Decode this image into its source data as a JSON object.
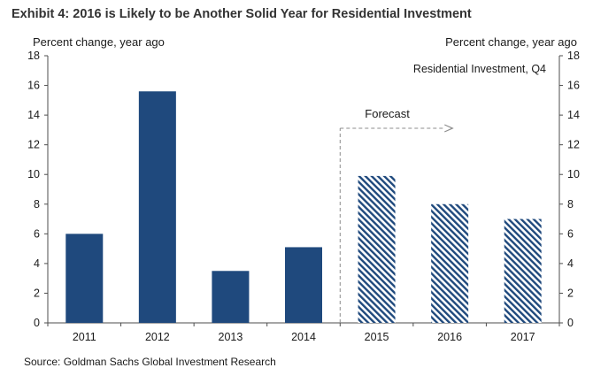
{
  "title": "Exhibit 4: 2016 is Likely to be Another Solid Year for Residential Investment",
  "source": "Source: Goldman Sachs Global Investment Research",
  "colors": {
    "actual": "#1f497d",
    "forecast": "#1f497d",
    "axis": "#4d4d4d",
    "arrow": "#8c8c8c"
  },
  "chart_data": {
    "type": "bar",
    "title": "Exhibit 4: 2016 is Likely to be Another Solid Year for Residential Investment",
    "series_label": "Residential Investment, Q4",
    "ylabel_left": "Percent change, year ago",
    "ylabel_right": "Percent change, year ago",
    "xlabel": "",
    "ylim": [
      0,
      18
    ],
    "yticks": [
      0,
      2,
      4,
      6,
      8,
      10,
      12,
      14,
      16,
      18
    ],
    "categories": [
      "2011",
      "2012",
      "2013",
      "2014",
      "2015",
      "2016",
      "2017"
    ],
    "values": [
      6.0,
      15.6,
      3.5,
      5.1,
      9.9,
      8.0,
      7.0
    ],
    "forecast_flags": [
      false,
      false,
      false,
      false,
      true,
      true,
      true
    ],
    "forecast_label": "Forecast",
    "forecast_start_category": "2015",
    "grid": false
  }
}
